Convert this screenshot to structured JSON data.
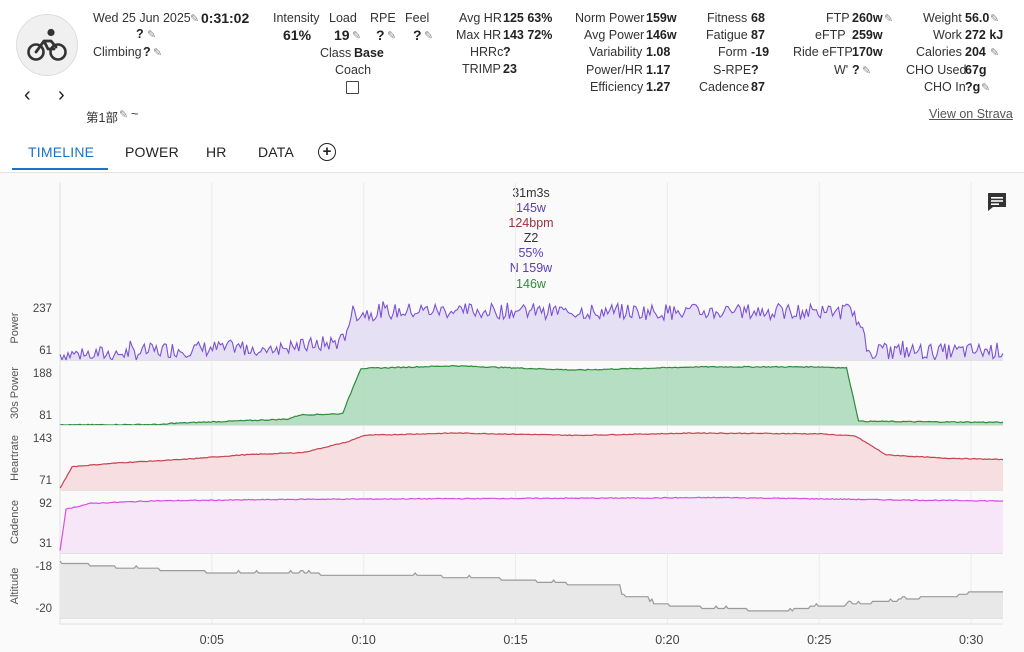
{
  "activity": {
    "date": "Wed 25 Jun 2025",
    "time_value": "?",
    "duration": "0:31:02",
    "climbing_label": "Climbing",
    "climbing_value": "?",
    "name": "第1部",
    "name_suffix": "~",
    "view_on_strava": "View on Strava"
  },
  "metrics": {
    "intensity_label": "Intensity",
    "intensity_value": "61%",
    "load_label": "Load",
    "load_value": "19",
    "rpe_label": "RPE",
    "rpe_value": "?",
    "feel_label": "Feel",
    "feel_value": "?",
    "class_label": "Class",
    "class_value": "Base",
    "coach_label": "Coach",
    "avg_hr_label": "Avg HR",
    "avg_hr_value": "125 63%",
    "max_hr_label": "Max HR",
    "max_hr_value": "143 72%",
    "hrrc_label": "HRRc",
    "hrrc_value": "?",
    "trimp_label": "TRIMP",
    "trimp_value": "23",
    "norm_power_label": "Norm Power",
    "norm_power_value": "159w",
    "avg_power_label": "Avg Power",
    "avg_power_value": "146w",
    "variability_label": "Variability",
    "variability_value": "1.08",
    "power_hr_label": "Power/HR",
    "power_hr_value": "1.17",
    "efficiency_label": "Efficiency",
    "efficiency_value": "1.27",
    "fitness_label": "Fitness",
    "fitness_value": "68",
    "fatigue_label": "Fatigue",
    "fatigue_value": "87",
    "form_label": "Form",
    "form_value": "-19",
    "srpe_label": "S-RPE",
    "srpe_value": "?",
    "cadence_label": "Cadence",
    "cadence_value": "87",
    "ftp_label": "FTP",
    "ftp_value": "260w",
    "eftp_label": "eFTP",
    "eftp_value": "259w",
    "ride_eftp_label": "Ride eFTP",
    "ride_eftp_value": "170w",
    "wprime_label": "W'",
    "wprime_value": "?",
    "weight_label": "Weight",
    "weight_value": "56.0",
    "work_label": "Work",
    "work_value": "272 kJ",
    "calories_label": "Calories",
    "calories_value": "204",
    "cho_used_label": "CHO Used",
    "cho_used_value": "67g",
    "cho_in_label": "CHO In",
    "cho_in_value": "?g"
  },
  "tabs": [
    {
      "label": "TIMELINE",
      "active": true
    },
    {
      "label": "POWER",
      "active": false
    },
    {
      "label": "HR",
      "active": false
    },
    {
      "label": "DATA",
      "active": false
    }
  ],
  "summary": {
    "duration": "31m3s",
    "avg_power": "145w",
    "avg_hr": "124bpm",
    "zone": "Z2",
    "intensity": "55%",
    "norm_power": "N 159w",
    "avg_power2": "146w"
  },
  "colors": {
    "accent": "#1a73c8",
    "power": "#7b52d4",
    "power30": "#2e8b3a",
    "heartrate": "#c7434f",
    "cadence": "#d84ee0",
    "altitude": "#9a9a9a"
  },
  "chart_data": {
    "type": "line",
    "x_unit": "minutes",
    "x_range": [
      0,
      31.05
    ],
    "x_ticks": [
      "0:05",
      "0:10",
      "0:15",
      "0:20",
      "0:25",
      "0:30"
    ],
    "panels": [
      {
        "name": "Power",
        "ytick_top": "237",
        "ytick_bottom": "61",
        "ylim": [
          50,
          250
        ],
        "points": [
          [
            0,
            68
          ],
          [
            2,
            70
          ],
          [
            3.5,
            82
          ],
          [
            6,
            88
          ],
          [
            8,
            92
          ],
          [
            9.3,
            108
          ],
          [
            9.6,
            195
          ],
          [
            12,
            205
          ],
          [
            17,
            202
          ],
          [
            21,
            200
          ],
          [
            26,
            202
          ],
          [
            26.2,
            190
          ],
          [
            26.6,
            80
          ],
          [
            29,
            76
          ],
          [
            31,
            80
          ]
        ]
      },
      {
        "name": "30s Power",
        "ytick_top": "188",
        "ytick_bottom": "81",
        "ylim": [
          75,
          195
        ],
        "points": [
          [
            0,
            75
          ],
          [
            3.5,
            76
          ],
          [
            3.6,
            78
          ],
          [
            7.5,
            86
          ],
          [
            7.9,
            94
          ],
          [
            9.3,
            96
          ],
          [
            9.9,
            181
          ],
          [
            13,
            186
          ],
          [
            17,
            178
          ],
          [
            21,
            184
          ],
          [
            25,
            184
          ],
          [
            25.9,
            182
          ],
          [
            26.3,
            82
          ],
          [
            31,
            80
          ]
        ]
      },
      {
        "name": "Heartrate",
        "ytick_top": "143",
        "ytick_bottom": "71",
        "ylim": [
          66,
          148
        ],
        "points": [
          [
            0,
            68
          ],
          [
            0.4,
            96
          ],
          [
            2,
            101
          ],
          [
            4,
            105
          ],
          [
            6,
            111
          ],
          [
            8,
            114
          ],
          [
            9.5,
            128
          ],
          [
            10,
            136
          ],
          [
            13,
            139
          ],
          [
            17,
            136
          ],
          [
            21,
            139
          ],
          [
            25,
            138
          ],
          [
            26.2,
            135
          ],
          [
            27.2,
            111
          ],
          [
            29,
            107
          ],
          [
            31,
            105
          ]
        ]
      },
      {
        "name": "Cadence",
        "ytick_top": "92",
        "ytick_bottom": "31",
        "ylim": [
          25,
          100
        ],
        "points": [
          [
            0,
            28
          ],
          [
            0.2,
            78
          ],
          [
            1,
            85
          ],
          [
            3,
            88
          ],
          [
            8,
            90
          ],
          [
            15,
            91
          ],
          [
            22,
            92
          ],
          [
            28,
            89
          ],
          [
            31,
            88
          ]
        ]
      },
      {
        "name": "Altitude",
        "ytick_top": "-18",
        "ytick_bottom": "-20",
        "ylim": [
          -20.3,
          -17.6
        ],
        "points": [
          [
            0,
            -18.0
          ],
          [
            2.3,
            -18.2
          ],
          [
            3.5,
            -18.3
          ],
          [
            6,
            -18.4
          ],
          [
            11,
            -18.5
          ],
          [
            14,
            -18.6
          ],
          [
            17,
            -18.9
          ],
          [
            18,
            -19.1
          ],
          [
            19,
            -19.5
          ],
          [
            20,
            -19.8
          ],
          [
            23,
            -20.0
          ],
          [
            26,
            -19.7
          ],
          [
            30,
            -19.2
          ],
          [
            31,
            -19.2
          ]
        ]
      }
    ]
  }
}
